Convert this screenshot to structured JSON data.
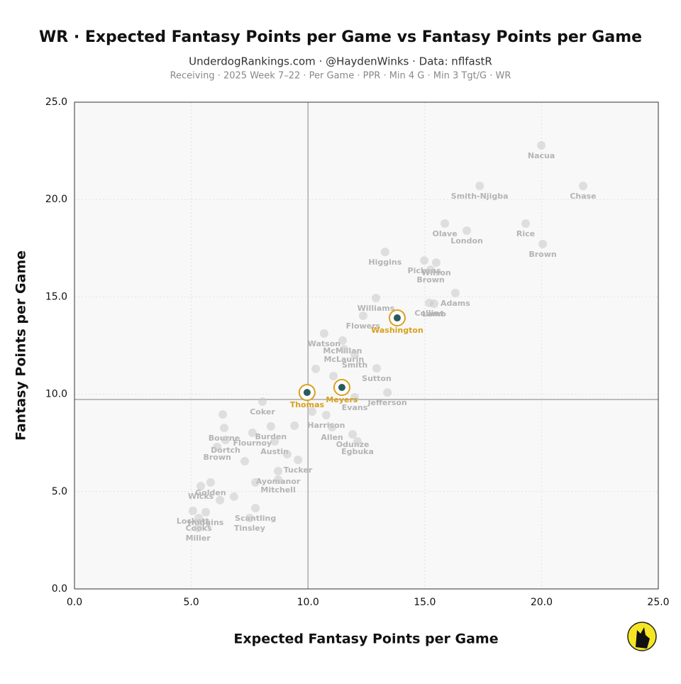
{
  "chart_data": {
    "type": "scatter",
    "title": "WR · Expected Fantasy Points per Game vs Fantasy Points per Game",
    "subtitle": "UnderdogRankings.com · @HaydenWinks · Data: nflfastR",
    "caption": "Receiving · 2025 Week 7–22 · Per Game · PPR · Min 4 G · Min 3 Tgt/G · WR",
    "xlabel": "Expected Fantasy Points per Game",
    "ylabel": "Fantasy Points per Game",
    "xlim": [
      0,
      25
    ],
    "ylim": [
      0,
      25
    ],
    "xticks": [
      {
        "value": 0,
        "label": "0.0"
      },
      {
        "value": 5,
        "label": "5.0"
      },
      {
        "value": 10,
        "label": "10.0"
      },
      {
        "value": 15,
        "label": "15.0"
      },
      {
        "value": 20,
        "label": "20.0"
      },
      {
        "value": 25,
        "label": "25.0"
      }
    ],
    "yticks": [
      {
        "value": 0,
        "label": "0.0"
      },
      {
        "value": 5,
        "label": "5.0"
      },
      {
        "value": 10,
        "label": "10.0"
      },
      {
        "value": 15,
        "label": "15.0"
      },
      {
        "value": 20,
        "label": "20.0"
      },
      {
        "value": 25,
        "label": "25.0"
      }
    ],
    "grid": true,
    "ref_x": 10.0,
    "ref_y": 9.73,
    "color": "#c8c8c8",
    "highlight_color": "#d9a01c",
    "label_color": "#b4b4b4",
    "point_labels": [
      "Nacua",
      "Chase",
      "Smith-Njigba",
      "Olave",
      "London",
      "Rice",
      "Brown",
      "Higgins",
      "Pickens",
      "Wilson",
      "Brown",
      "Adams",
      "Lamb",
      "Collins",
      "Williams",
      "Washington",
      "Flowers",
      "Watson",
      "McMillan",
      "McLaurin",
      "Smith",
      "Sutton",
      "Meyers",
      "Thomas",
      "Jefferson",
      "Evans",
      "Coker",
      "Harrison",
      "Allen",
      "Odunze",
      "Egbuka",
      "Bourne",
      "Dortch",
      "Brown",
      "Flournoy",
      "Burden",
      "Austin",
      "Tucker",
      "Ayomanor",
      "Mitchell",
      "Golden",
      "Wicks",
      "Scantling",
      "Tinsley",
      "Lockett",
      "Hodgins",
      "Cooks",
      "Miller",
      null,
      null,
      null,
      null,
      null,
      null,
      null,
      null,
      null,
      null
    ],
    "x": [
      19.99,
      21.78,
      17.35,
      15.86,
      16.8,
      19.32,
      20.05,
      13.3,
      14.98,
      15.49,
      15.25,
      16.31,
      15.4,
      15.19,
      12.91,
      13.82,
      12.36,
      10.69,
      11.48,
      11.54,
      12.0,
      12.94,
      11.45,
      9.96,
      13.4,
      12.0,
      8.05,
      10.78,
      11.03,
      11.91,
      12.12,
      6.41,
      6.47,
      6.11,
      7.62,
      8.41,
      8.57,
      9.57,
      8.72,
      8.72,
      5.83,
      5.41,
      7.75,
      7.5,
      5.07,
      5.62,
      5.32,
      5.29,
      6.35,
      7.29,
      6.83,
      9.11,
      10.33,
      11.09,
      10.18,
      7.75,
      6.23,
      9.42
    ],
    "y": [
      22.78,
      20.7,
      20.7,
      18.77,
      18.4,
      18.77,
      17.71,
      17.31,
      16.87,
      16.76,
      16.4,
      15.2,
      14.65,
      14.69,
      14.94,
      13.92,
      14.03,
      13.12,
      12.76,
      12.32,
      12.03,
      11.33,
      10.35,
      10.09,
      10.09,
      9.84,
      9.62,
      8.93,
      8.31,
      7.94,
      7.58,
      8.27,
      7.65,
      7.29,
      8.02,
      8.35,
      7.58,
      6.63,
      6.05,
      5.61,
      5.47,
      5.28,
      4.15,
      3.64,
      4.01,
      3.94,
      3.64,
      3.13,
      8.96,
      6.56,
      4.74,
      6.92,
      11.3,
      10.93,
      9.11,
      5.47,
      4.56,
      8.38
    ],
    "highlighted": [
      false,
      false,
      false,
      false,
      false,
      false,
      false,
      false,
      false,
      false,
      false,
      false,
      false,
      false,
      false,
      true,
      false,
      false,
      false,
      false,
      false,
      false,
      true,
      true,
      false,
      false,
      false,
      false,
      false,
      false,
      false,
      false,
      false,
      false,
      false,
      false,
      false,
      false,
      false,
      false,
      false,
      false,
      false,
      false,
      false,
      false,
      false,
      false,
      false,
      false,
      false,
      false,
      false,
      false,
      false,
      false,
      false,
      false
    ]
  }
}
